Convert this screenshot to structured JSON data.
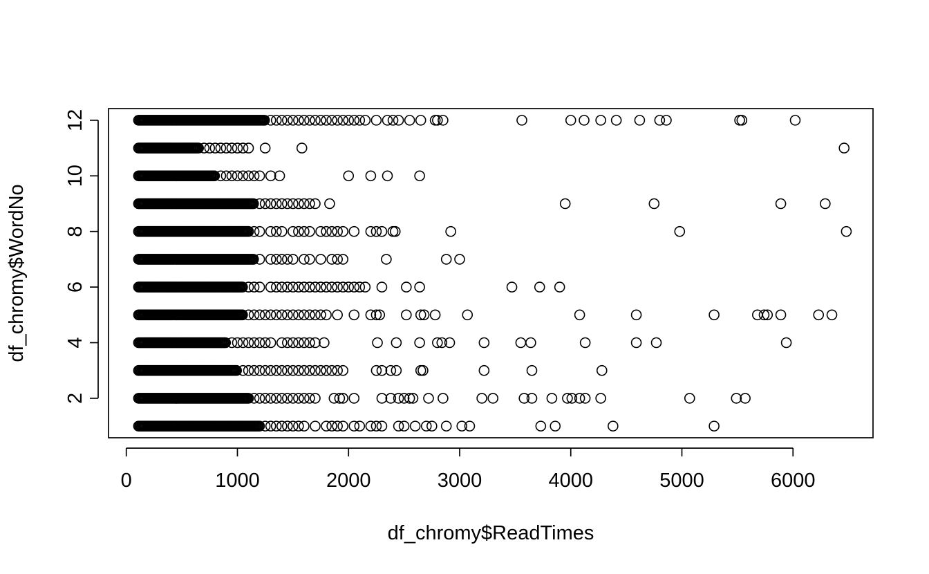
{
  "chart_data": {
    "type": "scatter",
    "title": "",
    "xlabel": "df_chromy$ReadTimes",
    "ylabel": "df_chromy$WordNo",
    "xlim": [
      -160,
      6720
    ],
    "ylim": [
      0.58,
      12.42
    ],
    "x_ticks": [
      0,
      1000,
      2000,
      3000,
      4000,
      5000,
      6000
    ],
    "y_ticks": [
      2,
      4,
      6,
      8,
      10,
      12
    ],
    "grid": false,
    "legend": "none",
    "marker": "open-circle",
    "color": "#000000",
    "dense_band_max_x": {
      "1": 1200,
      "2": 1100,
      "3": 1000,
      "4": 900,
      "5": 1050,
      "6": 1050,
      "7": 1150,
      "8": 1100,
      "9": 1150,
      "10": 800,
      "11": 650,
      "12": 1250
    },
    "points": [
      {
        "y": 12,
        "x": [
          1300,
          1350,
          1400,
          1450,
          1500,
          1550,
          1600,
          1650,
          1700,
          1750,
          1800,
          1850,
          1900,
          1950,
          2000,
          2050,
          2100,
          2150,
          2250,
          2350,
          2400,
          2450,
          2550,
          2650,
          2780,
          2800,
          2850,
          3560,
          4000,
          4120,
          4270,
          4410,
          4620,
          4800,
          4860,
          5520,
          5540,
          6020
        ]
      },
      {
        "y": 11,
        "x": [
          700,
          750,
          800,
          850,
          900,
          950,
          1000,
          1050,
          1100,
          1250,
          1580,
          6460
        ]
      },
      {
        "y": 10,
        "x": [
          850,
          900,
          950,
          1000,
          1050,
          1100,
          1150,
          1200,
          1300,
          1380,
          2000,
          2200,
          2350,
          2640
        ]
      },
      {
        "y": 9,
        "x": [
          1200,
          1250,
          1300,
          1350,
          1400,
          1450,
          1500,
          1550,
          1600,
          1650,
          1700,
          1830,
          3950,
          4750,
          5890,
          6290
        ]
      },
      {
        "y": 8,
        "x": [
          1150,
          1200,
          1300,
          1350,
          1400,
          1500,
          1550,
          1600,
          1650,
          1750,
          1800,
          1850,
          1900,
          1950,
          2050,
          2200,
          2250,
          2300,
          2400,
          2420,
          2920,
          4980,
          6480
        ]
      },
      {
        "y": 7,
        "x": [
          1200,
          1300,
          1350,
          1400,
          1450,
          1500,
          1600,
          1650,
          1750,
          1850,
          1900,
          1950,
          2340,
          2880,
          3000
        ]
      },
      {
        "y": 6,
        "x": [
          1100,
          1150,
          1200,
          1300,
          1350,
          1400,
          1450,
          1500,
          1550,
          1600,
          1650,
          1700,
          1750,
          1800,
          1850,
          1900,
          1950,
          2000,
          2050,
          2100,
          2150,
          2300,
          2520,
          2640,
          3470,
          3720,
          3900
        ]
      },
      {
        "y": 5,
        "x": [
          1100,
          1150,
          1200,
          1250,
          1300,
          1350,
          1400,
          1450,
          1500,
          1550,
          1600,
          1650,
          1700,
          1750,
          1800,
          1900,
          2050,
          2200,
          2250,
          2280,
          2520,
          2650,
          2680,
          2780,
          3070,
          4080,
          4590,
          5290,
          5680,
          5740,
          5770,
          5890,
          6230,
          6350
        ]
      },
      {
        "y": 4,
        "x": [
          950,
          1000,
          1050,
          1100,
          1150,
          1200,
          1250,
          1300,
          1400,
          1450,
          1500,
          1550,
          1600,
          1650,
          1700,
          1780,
          2260,
          2430,
          2640,
          2800,
          2840,
          2910,
          3220,
          3550,
          3640,
          4130,
          4590,
          4770,
          5940
        ]
      },
      {
        "y": 3,
        "x": [
          1050,
          1100,
          1150,
          1200,
          1250,
          1300,
          1350,
          1400,
          1450,
          1500,
          1550,
          1600,
          1650,
          1700,
          1750,
          1800,
          1850,
          1900,
          1950,
          2250,
          2300,
          2380,
          2430,
          2650,
          2670,
          3220,
          3650,
          4280
        ]
      },
      {
        "y": 2,
        "x": [
          1150,
          1200,
          1250,
          1300,
          1350,
          1400,
          1450,
          1500,
          1550,
          1600,
          1650,
          1700,
          1870,
          1920,
          1950,
          2050,
          2300,
          2380,
          2450,
          2500,
          2550,
          2580,
          2720,
          2850,
          3200,
          3300,
          3580,
          3650,
          3830,
          3970,
          4010,
          4080,
          4130,
          4270,
          5070,
          5490,
          5570
        ]
      },
      {
        "y": 1,
        "x": [
          1250,
          1300,
          1350,
          1400,
          1450,
          1500,
          1550,
          1600,
          1700,
          1800,
          1850,
          1900,
          1950,
          2050,
          2100,
          2200,
          2250,
          2300,
          2450,
          2500,
          2600,
          2700,
          2750,
          2880,
          3020,
          3090,
          3730,
          3860,
          4380,
          5290
        ]
      }
    ]
  }
}
